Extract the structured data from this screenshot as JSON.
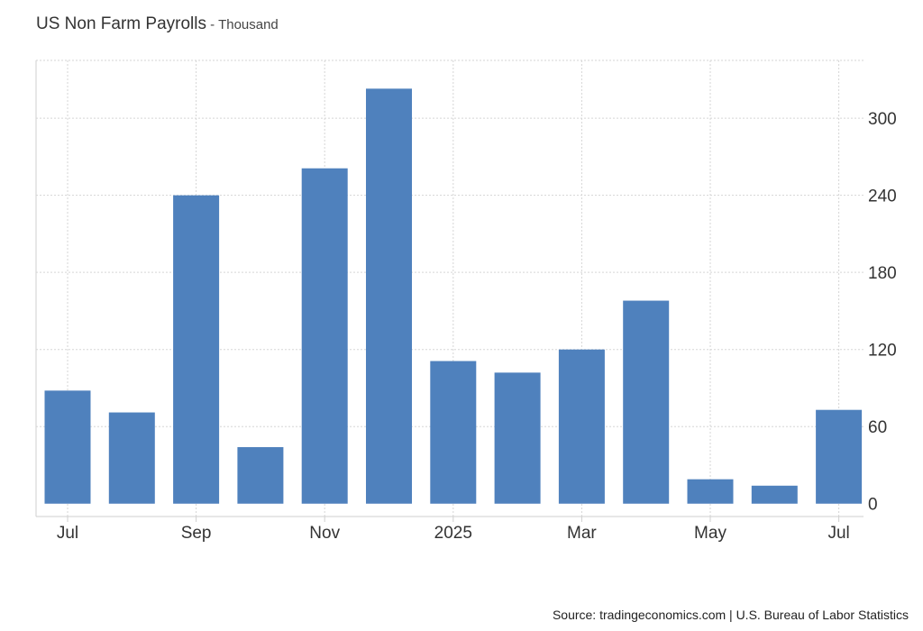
{
  "header": {
    "title": "US Non Farm Payrolls",
    "separator": " - ",
    "unit": "Thousand"
  },
  "footer": {
    "source": "Source: tradingeconomics.com | U.S. Bureau of Labor Statistics"
  },
  "chart_data": {
    "type": "bar",
    "title": "US Non Farm Payrolls",
    "subtitle": "Thousand",
    "categories": [
      "2024-07",
      "2024-08",
      "2024-09",
      "2024-10",
      "2024-11",
      "2024-12",
      "2025-01",
      "2025-02",
      "2025-03",
      "2025-04",
      "2025-05",
      "2025-06",
      "2025-07"
    ],
    "values": [
      88,
      71,
      240,
      44,
      261,
      323,
      111,
      102,
      120,
      158,
      19,
      14,
      73
    ],
    "x_tick_labels": [
      {
        "label": "Jul",
        "category": "2024-07"
      },
      {
        "label": "Sep",
        "category": "2024-09"
      },
      {
        "label": "Nov",
        "category": "2024-11"
      },
      {
        "label": "2025",
        "category": "2025-01"
      },
      {
        "label": "Mar",
        "category": "2025-03"
      },
      {
        "label": "May",
        "category": "2025-05"
      },
      {
        "label": "Jul",
        "category": "2025-07"
      }
    ],
    "y_ticks": [
      0,
      60,
      120,
      180,
      240,
      300
    ],
    "ylim": [
      -10,
      345
    ],
    "y_axis_side": "right",
    "grid": true,
    "bar_color": "#4f81bd",
    "grid_color": "#d5d5d5"
  }
}
